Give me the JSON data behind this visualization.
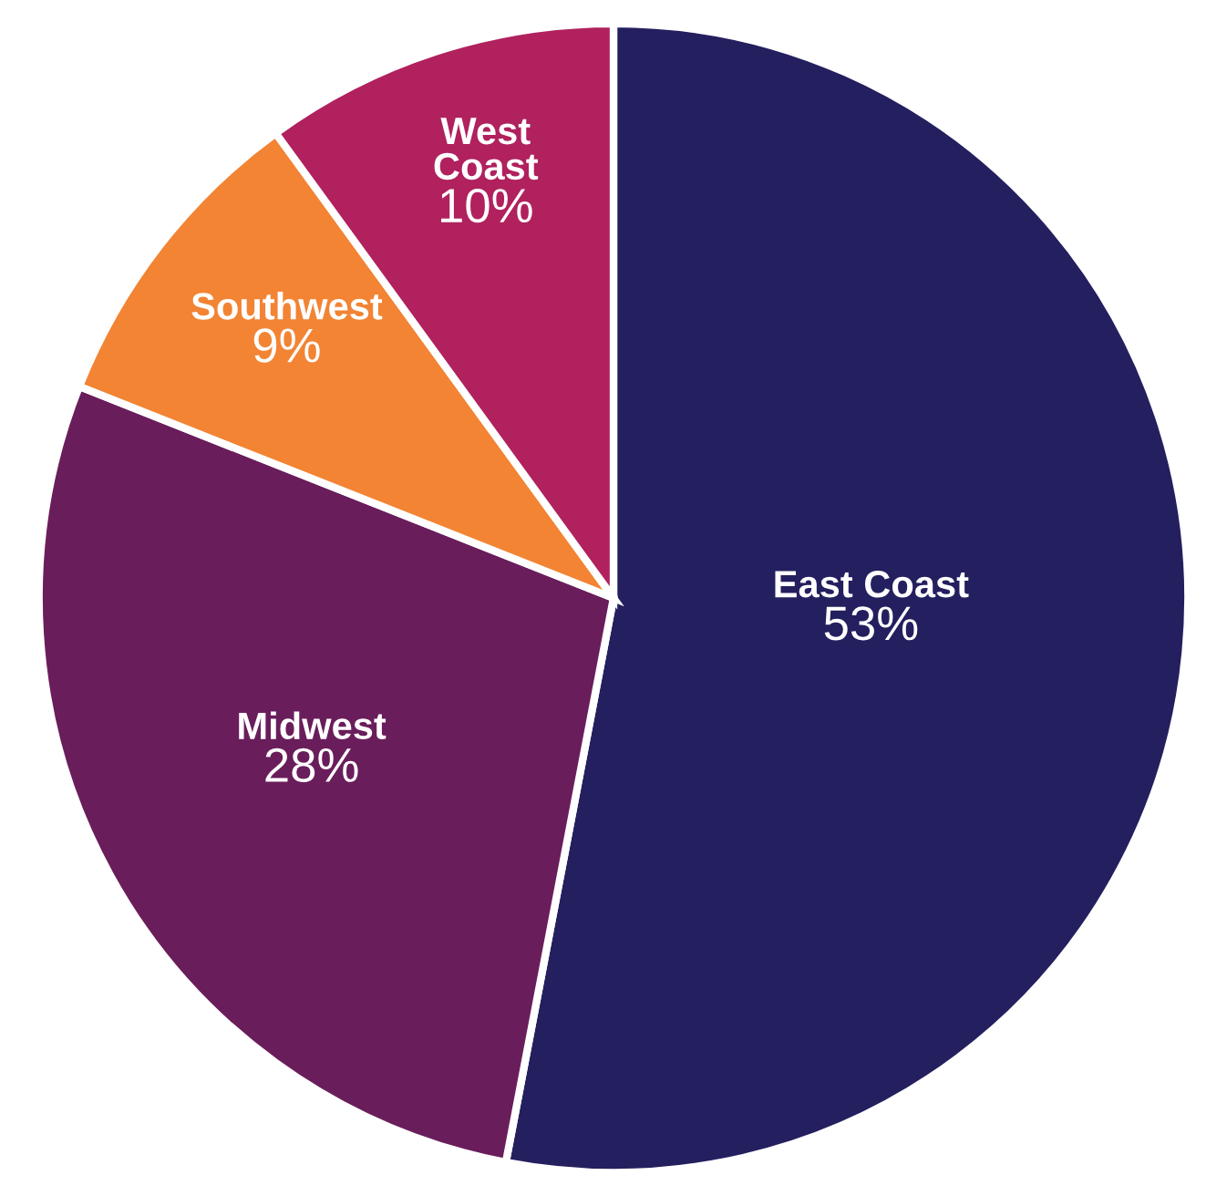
{
  "chart_data": {
    "type": "pie",
    "categories": [
      "East Coast",
      "Midwest",
      "Southwest",
      "West Coast"
    ],
    "values": [
      53,
      28,
      9,
      10
    ],
    "value_labels": [
      "53%",
      "28%",
      "9%",
      "10%"
    ],
    "colors": [
      "#241f5e",
      "#6a1d5b",
      "#f28434",
      "#b0215e"
    ],
    "legend": false
  }
}
